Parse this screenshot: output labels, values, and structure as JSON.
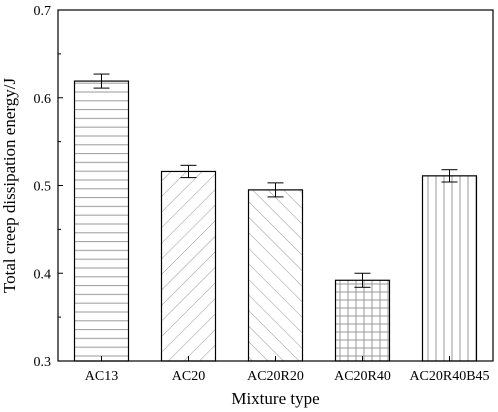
{
  "chart_data": {
    "type": "bar",
    "categories": [
      "AC13",
      "AC20",
      "AC20R20",
      "AC20R40",
      "AC20R40B45"
    ],
    "values": [
      0.619,
      0.516,
      0.495,
      0.392,
      0.511
    ],
    "errors": [
      0.008,
      0.007,
      0.008,
      0.008,
      0.007
    ],
    "patterns": [
      "horizontal-lines",
      "forward-diagonal",
      "backward-diagonal",
      "grid",
      "vertical-lines"
    ],
    "xlabel": "Mixture type",
    "ylabel": "Total creep dissipation energy/J",
    "ylim": [
      0.3,
      0.7
    ],
    "yticks": [
      "0.3",
      "0.4",
      "0.5",
      "0.6",
      "0.7"
    ],
    "grid": false,
    "bar_fill": "#ffffff",
    "bar_stroke": "#000000",
    "hatch_color": "#999999"
  }
}
